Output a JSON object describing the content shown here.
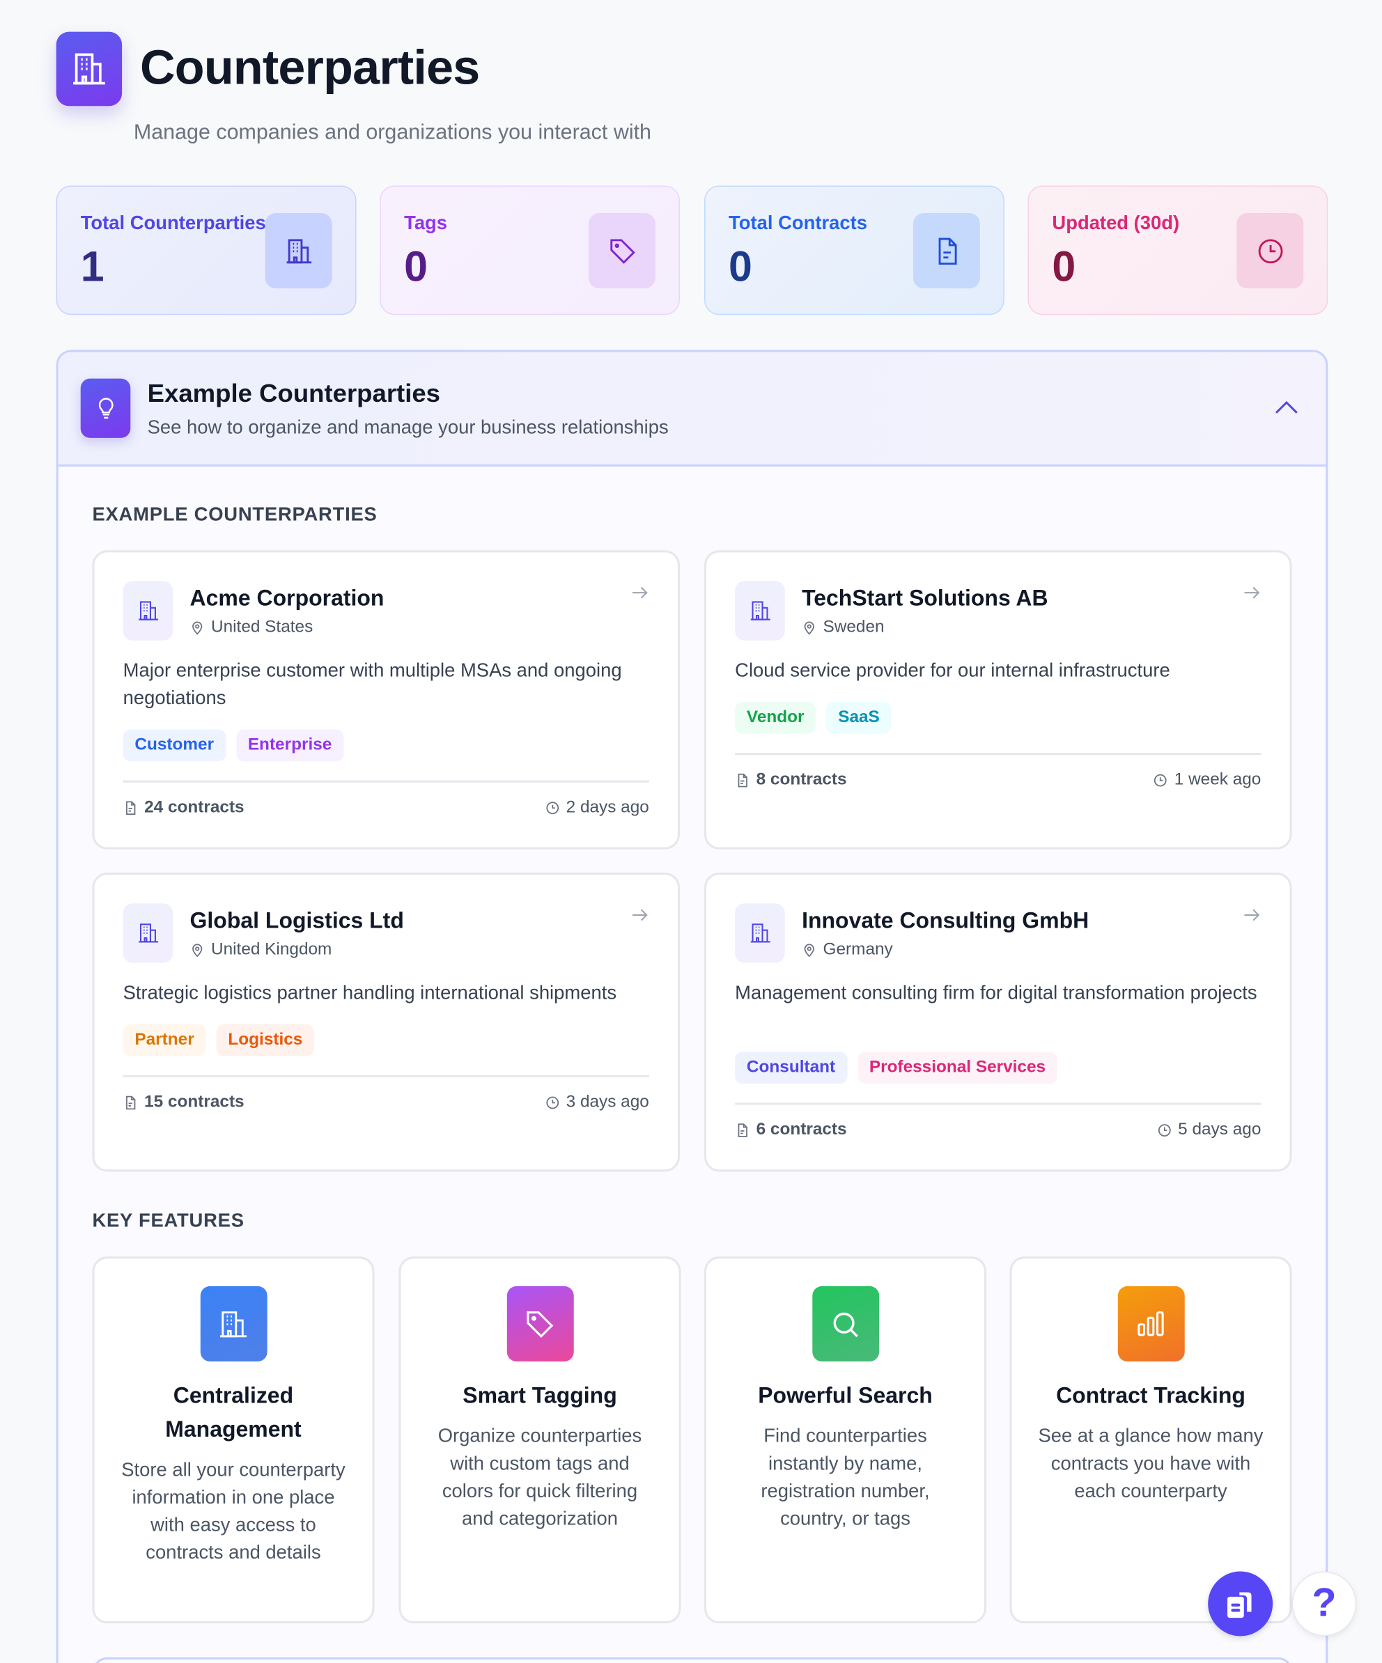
{
  "header": {
    "title": "Counterparties",
    "subtitle": "Manage companies and organizations you interact with",
    "icon": "building-icon"
  },
  "stats": [
    {
      "label": "Total Counterparties",
      "value": "1",
      "icon": "building-icon",
      "color": "#4f46e5",
      "value_color": "#312e81"
    },
    {
      "label": "Tags",
      "value": "0",
      "icon": "tag-icon",
      "color": "#9333ea",
      "value_color": "#581c87"
    },
    {
      "label": "Total Contracts",
      "value": "0",
      "icon": "file-icon",
      "color": "#2563eb",
      "value_color": "#1e3a8a"
    },
    {
      "label": "Updated (30d)",
      "value": "0",
      "icon": "clock-icon",
      "color": "#db2777",
      "value_color": "#831843"
    }
  ],
  "examples": {
    "title": "Example Counterparties",
    "subtitle": "See how to organize and manage your business relationships",
    "section_label": "EXAMPLE COUNTERPARTIES",
    "items": [
      {
        "name": "Acme Corporation",
        "country": "United States",
        "description": "Major enterprise customer with multiple MSAs and ongoing negotiations",
        "tags": [
          "Customer",
          "Enterprise"
        ],
        "contracts": "24 contracts",
        "updated": "2 days ago"
      },
      {
        "name": "TechStart Solutions AB",
        "country": "Sweden",
        "description": "Cloud service provider for our internal infrastructure",
        "tags": [
          "Vendor",
          "SaaS"
        ],
        "contracts": "8 contracts",
        "updated": "1 week ago"
      },
      {
        "name": "Global Logistics Ltd",
        "country": "United Kingdom",
        "description": "Strategic logistics partner handling international shipments",
        "tags": [
          "Partner",
          "Logistics"
        ],
        "contracts": "15 contracts",
        "updated": "3 days ago"
      },
      {
        "name": "Innovate Consulting GmbH",
        "country": "Germany",
        "description": "Management consulting firm for digital transformation projects",
        "tags": [
          "Consultant",
          "Professional Services"
        ],
        "contracts": "6 contracts",
        "updated": "5 days ago"
      }
    ]
  },
  "features": {
    "section_label": "KEY FEATURES",
    "items": [
      {
        "title": "Centralized Management",
        "description": "Store all your counterparty information in one place with easy access to contracts and details",
        "icon": "building-icon"
      },
      {
        "title": "Smart Tagging",
        "description": "Organize counterparties with custom tags and colors for quick filtering and categorization",
        "icon": "tag-icon"
      },
      {
        "title": "Powerful Search",
        "description": "Find counterparties instantly by name, registration number, country, or tags",
        "icon": "search-icon"
      },
      {
        "title": "Contract Tracking",
        "description": "See at a glance how many contracts you have with each counterparty",
        "icon": "bar-chart-icon"
      }
    ]
  },
  "fab": {
    "help_label": "?"
  }
}
